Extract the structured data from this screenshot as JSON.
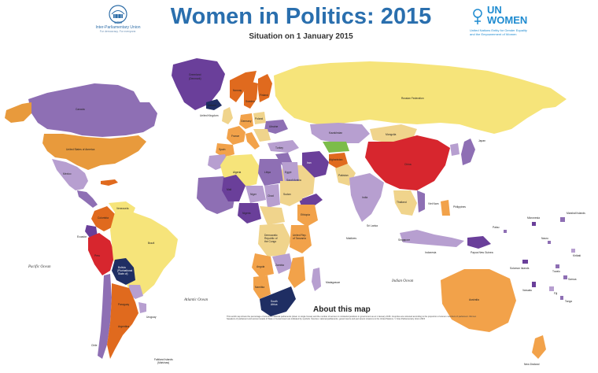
{
  "header": {
    "title": "Women in Politics: 2015",
    "subtitle": "Situation on 1 January 2015",
    "ipu_year": "1889",
    "ipu_name": "Inter-Parliamentary Union",
    "ipu_tagline": "For democracy. For everyone.",
    "un_line1": "UN",
    "un_line2": "WOMEN",
    "un_sub1": "United Nations Entity for Gender Equality",
    "un_sub2": "and the Empowerment of Women"
  },
  "map": {
    "oceans": [
      "Pacific Ocean",
      "Atlantic Ocean",
      "Indian Ocean"
    ],
    "labels": {
      "canada": "Canada",
      "usa": "United States of America",
      "mexico": "Mexico",
      "greenland": "Greenland",
      "greenland_sub": "(Denmark)",
      "iceland": "Iceland",
      "brazil": "Brazil",
      "argentina": "Argentina",
      "bolivia": "Bolivia",
      "bolivia_sub1": "(Plurinational",
      "bolivia_sub2": "State of)",
      "peru": "Peru",
      "chile": "Chile",
      "colombia": "Colombia",
      "venezuela": "Venezuela",
      "ecuador": "Ecuador",
      "paraguay": "Paraguay",
      "uruguay": "Uruguay",
      "falkland1": "Falkland Islands",
      "falkland2": "(Malvinas)",
      "russia": "Russian Federation",
      "china": "China",
      "india": "India",
      "mongolia": "Mongolia",
      "kazakhstan": "Kazakhstan",
      "algeria": "Algeria",
      "libya": "Libya",
      "egypt": "Egypt",
      "sudan": "Sudan",
      "south_sudan": "South Sudan",
      "ethiopia": "Ethiopia",
      "chad": "Chad",
      "niger": "Niger",
      "mali": "Mali",
      "nigeria": "Nigeria",
      "drc1": "Democratic",
      "drc2": "Republic of",
      "drc3": "the Congo",
      "angola": "Angola",
      "zambia": "Zambia",
      "namibia": "Namibia",
      "south_africa1": "South",
      "south_africa2": "Africa",
      "tanzania1": "United Rep.",
      "tanzania2": "of Tanzania",
      "kenya": "Kenya",
      "madagascar": "Madagascar",
      "saudi": "Saudi Arabia",
      "iran": "Iran",
      "turkey": "Turkey",
      "afghanistan": "Afghanistan",
      "pakistan": "Pakistan",
      "australia": "Australia",
      "new_zealand": "New Zealand",
      "indonesia": "Indonesia",
      "japan": "Japan",
      "philippines": "Philippines",
      "thailand": "Thailand",
      "viet_nam": "Viet Nam",
      "papua": "Papua New Guinea",
      "sri_lanka": "Sri Lanka",
      "maldives": "Maldives",
      "singapore": "Singapore",
      "finland": "Finland",
      "sweden": "Sweden",
      "norway": "Norway",
      "united_kingdom": "United Kingdom",
      "france": "France",
      "germany": "Germany",
      "spain": "Spain",
      "poland": "Poland",
      "ukraine": "Ukraine",
      "marshall": "Marshall Islands",
      "micronesia": "Micronesia",
      "kiribati": "Kiribati",
      "tuvalu": "Tuvalu",
      "samoa": "Samoa",
      "fiji": "Fiji",
      "tonga": "Tonga",
      "solomon": "Solomon Islands",
      "vanuatu": "Vanuatu",
      "nauru": "Nauru",
      "palau": "Palau"
    }
  },
  "about": {
    "title": "About this map",
    "body": "This world map shows the percentage of women in national parliaments (lower or single house) and the number of women in ministerial positions in government as at 1 January 2015. Countries are coloured according to the proportion of women members of parliament. Women Speakers of parliament and women Heads of State or Government are indicated by symbols. Sources: national parliaments, governments and permanent missions to the United Nations. © Inter-Parliamentary Union 2015"
  },
  "colors": {
    "title_blue": "#2a6fae",
    "cat_0_5": "#6a3f9a",
    "cat_5_10": "#8e6fb4",
    "cat_10_15": "#b79fd0",
    "cat_15_20": "#f0d48c",
    "cat_20_30": "#f6e47a",
    "cat_30_40": "#f2a24a",
    "cat_40_plus": "#e06a1e",
    "red": "#d7262e",
    "navy": "#1f2e63",
    "green": "#7cbc4a",
    "grey": "#b7b7b7"
  }
}
